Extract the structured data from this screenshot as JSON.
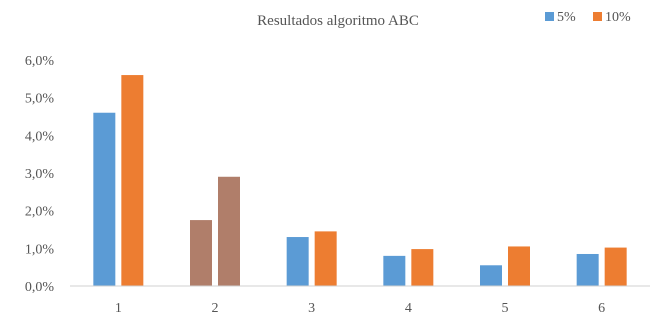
{
  "chart_data": {
    "type": "bar",
    "title": "Resultados algoritmo ABC",
    "xlabel": "",
    "ylabel": "",
    "categories": [
      "1",
      "2",
      "3",
      "4",
      "5",
      "6"
    ],
    "series": [
      {
        "name": "5%",
        "values": [
          4.6,
          1.75,
          1.3,
          0.8,
          0.55,
          0.85
        ],
        "color": "#5b9bd5"
      },
      {
        "name": "10%",
        "values": [
          5.6,
          2.9,
          1.45,
          0.98,
          1.05,
          1.02
        ],
        "color": "#ed7d31"
      }
    ],
    "highlight": {
      "category_index": 1,
      "colors": [
        "#b07e6a",
        "#b07e6a"
      ]
    },
    "ylim": [
      0,
      6
    ],
    "yticks": [
      "0,0%",
      "1,0%",
      "2,0%",
      "3,0%",
      "4,0%",
      "5,0%",
      "6,0%"
    ],
    "grid": false,
    "legend_position": "top-right"
  }
}
